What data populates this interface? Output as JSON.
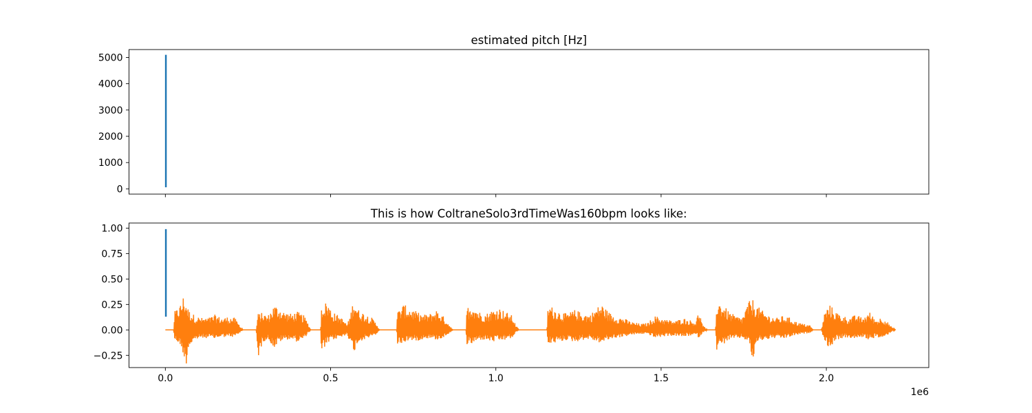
{
  "chart_data": [
    {
      "type": "line",
      "title": "estimated pitch [Hz]",
      "xlim": [
        -110000,
        2310000
      ],
      "ylim": [
        -200,
        5300
      ],
      "x_ticks": [
        0,
        500000,
        1000000,
        1500000,
        2000000
      ],
      "x_tick_labels_visible": false,
      "y_ticks": [
        0,
        1000,
        2000,
        3000,
        4000,
        5000
      ],
      "y_tick_labels": [
        "0",
        "1000",
        "2000",
        "3000",
        "4000",
        "5000"
      ],
      "grid": false,
      "series": [
        {
          "color": "#1f77b4",
          "x_range": [
            0,
            2500
          ],
          "y_range": [
            60,
            5100
          ]
        }
      ]
    },
    {
      "type": "line",
      "title": "This is how ColtraneSolo3rdTimeWas160bpm looks like:",
      "xlim": [
        -110000,
        2310000
      ],
      "ylim": [
        -0.37,
        1.05
      ],
      "x_ticks": [
        0,
        500000,
        1000000,
        1500000,
        2000000
      ],
      "x_tick_labels": [
        "0.0",
        "0.5",
        "1.0",
        "1.5",
        "2.0"
      ],
      "x_offset_text": "1e6",
      "y_ticks": [
        -0.25,
        0,
        0.25,
        0.5,
        0.75,
        1.0
      ],
      "y_tick_labels": [
        "−0.25",
        "0.00",
        "0.25",
        "0.50",
        "0.75",
        "1.00"
      ],
      "grid": false,
      "series": [
        {
          "color": "#1f77b4",
          "x_range": [
            0,
            2500
          ],
          "y_range": [
            0.13,
            0.99
          ]
        },
        {
          "color": "#ff7f0e",
          "x_range": [
            0,
            2210000
          ],
          "envelope_points": [
            [
              0,
              0.0,
              0.0
            ],
            [
              25000,
              0.0,
              0.0
            ],
            [
              28000,
              0.18,
              -0.1
            ],
            [
              45000,
              0.25,
              -0.15
            ],
            [
              55000,
              0.34,
              -0.25
            ],
            [
              62000,
              0.3,
              -0.37
            ],
            [
              70000,
              0.2,
              -0.18
            ],
            [
              90000,
              0.14,
              -0.1
            ],
            [
              110000,
              0.12,
              -0.08
            ],
            [
              130000,
              0.12,
              -0.08
            ],
            [
              150000,
              0.15,
              -0.09
            ],
            [
              170000,
              0.12,
              -0.07
            ],
            [
              190000,
              0.13,
              -0.07
            ],
            [
              210000,
              0.12,
              -0.07
            ],
            [
              225000,
              0.05,
              -0.03
            ],
            [
              235000,
              0.0,
              0.0
            ],
            [
              275000,
              0.0,
              0.0
            ],
            [
              280000,
              0.16,
              -0.28
            ],
            [
              295000,
              0.17,
              -0.12
            ],
            [
              310000,
              0.14,
              -0.09
            ],
            [
              330000,
              0.25,
              -0.18
            ],
            [
              345000,
              0.22,
              -0.12
            ],
            [
              360000,
              0.18,
              -0.1
            ],
            [
              380000,
              0.16,
              -0.09
            ],
            [
              400000,
              0.18,
              -0.12
            ],
            [
              420000,
              0.14,
              -0.09
            ],
            [
              430000,
              0.08,
              -0.04
            ],
            [
              440000,
              0.0,
              0.0
            ],
            [
              470000,
              0.0,
              0.0
            ],
            [
              472000,
              0.25,
              -0.23
            ],
            [
              490000,
              0.28,
              -0.14
            ],
            [
              505000,
              0.18,
              -0.1
            ],
            [
              525000,
              0.14,
              -0.08
            ],
            [
              540000,
              0.1,
              -0.07
            ],
            [
              550000,
              0.05,
              -0.03
            ],
            [
              560000,
              0.15,
              -0.15
            ],
            [
              570000,
              0.32,
              -0.22
            ],
            [
              585000,
              0.2,
              -0.12
            ],
            [
              605000,
              0.16,
              -0.09
            ],
            [
              625000,
              0.12,
              -0.07
            ],
            [
              640000,
              0.06,
              -0.04
            ],
            [
              648000,
              0.0,
              0.0
            ],
            [
              700000,
              0.0,
              0.0
            ],
            [
              702000,
              0.18,
              -0.15
            ],
            [
              720000,
              0.25,
              -0.13
            ],
            [
              740000,
              0.22,
              -0.1
            ],
            [
              760000,
              0.18,
              -0.11
            ],
            [
              780000,
              0.15,
              -0.09
            ],
            [
              800000,
              0.16,
              -0.08
            ],
            [
              820000,
              0.2,
              -0.1
            ],
            [
              840000,
              0.14,
              -0.08
            ],
            [
              860000,
              0.05,
              -0.03
            ],
            [
              870000,
              0.0,
              0.0
            ],
            [
              910000,
              0.0,
              0.0
            ],
            [
              912000,
              0.22,
              -0.15
            ],
            [
              930000,
              0.26,
              -0.14
            ],
            [
              950000,
              0.18,
              -0.1
            ],
            [
              970000,
              0.16,
              -0.1
            ],
            [
              990000,
              0.2,
              -0.12
            ],
            [
              1010000,
              0.22,
              -0.11
            ],
            [
              1030000,
              0.18,
              -0.1
            ],
            [
              1050000,
              0.14,
              -0.08
            ],
            [
              1060000,
              0.05,
              -0.03
            ],
            [
              1070000,
              0.0,
              0.0
            ],
            [
              1155000,
              0.0,
              0.0
            ],
            [
              1158000,
              0.25,
              -0.15
            ],
            [
              1175000,
              0.22,
              -0.13
            ],
            [
              1195000,
              0.18,
              -0.12
            ],
            [
              1215000,
              0.16,
              -0.1
            ],
            [
              1240000,
              0.2,
              -0.12
            ],
            [
              1260000,
              0.17,
              -0.1
            ],
            [
              1285000,
              0.15,
              -0.09
            ],
            [
              1305000,
              0.22,
              -0.12
            ],
            [
              1320000,
              0.26,
              -0.13
            ],
            [
              1340000,
              0.18,
              -0.1
            ],
            [
              1360000,
              0.14,
              -0.08
            ],
            [
              1385000,
              0.12,
              -0.07
            ],
            [
              1410000,
              0.08,
              -0.05
            ],
            [
              1440000,
              0.06,
              -0.04
            ],
            [
              1460000,
              0.07,
              -0.04
            ],
            [
              1480000,
              0.14,
              -0.08
            ],
            [
              1500000,
              0.12,
              -0.07
            ],
            [
              1520000,
              0.1,
              -0.06
            ],
            [
              1545000,
              0.09,
              -0.06
            ],
            [
              1565000,
              0.12,
              -0.07
            ],
            [
              1585000,
              0.1,
              -0.06
            ],
            [
              1605000,
              0.08,
              -0.05
            ],
            [
              1615000,
              0.2,
              -0.08
            ],
            [
              1625000,
              0.05,
              -0.03
            ],
            [
              1640000,
              0.0,
              0.0
            ],
            [
              1665000,
              0.0,
              0.0
            ],
            [
              1668000,
              0.3,
              -0.2
            ],
            [
              1685000,
              0.26,
              -0.15
            ],
            [
              1705000,
              0.18,
              -0.1
            ],
            [
              1725000,
              0.14,
              -0.09
            ],
            [
              1745000,
              0.12,
              -0.08
            ],
            [
              1765000,
              0.28,
              -0.12
            ],
            [
              1778000,
              0.3,
              -0.32
            ],
            [
              1790000,
              0.24,
              -0.12
            ],
            [
              1810000,
              0.18,
              -0.1
            ],
            [
              1830000,
              0.14,
              -0.09
            ],
            [
              1850000,
              0.12,
              -0.08
            ],
            [
              1870000,
              0.14,
              -0.09
            ],
            [
              1890000,
              0.12,
              -0.07
            ],
            [
              1910000,
              0.08,
              -0.05
            ],
            [
              1930000,
              0.06,
              -0.04
            ],
            [
              1950000,
              0.05,
              -0.03
            ],
            [
              1960000,
              0.0,
              0.0
            ],
            [
              1985000,
              0.0,
              0.0
            ],
            [
              1995000,
              0.18,
              -0.12
            ],
            [
              2010000,
              0.25,
              -0.18
            ],
            [
              2030000,
              0.18,
              -0.1
            ],
            [
              2050000,
              0.14,
              -0.08
            ],
            [
              2070000,
              0.12,
              -0.08
            ],
            [
              2090000,
              0.15,
              -0.09
            ],
            [
              2110000,
              0.12,
              -0.07
            ],
            [
              2130000,
              0.18,
              -0.1
            ],
            [
              2150000,
              0.1,
              -0.07
            ],
            [
              2170000,
              0.13,
              -0.09
            ],
            [
              2185000,
              0.08,
              -0.05
            ],
            [
              2200000,
              0.02,
              -0.01
            ],
            [
              2210000,
              0.0,
              0.0
            ]
          ]
        }
      ]
    }
  ]
}
